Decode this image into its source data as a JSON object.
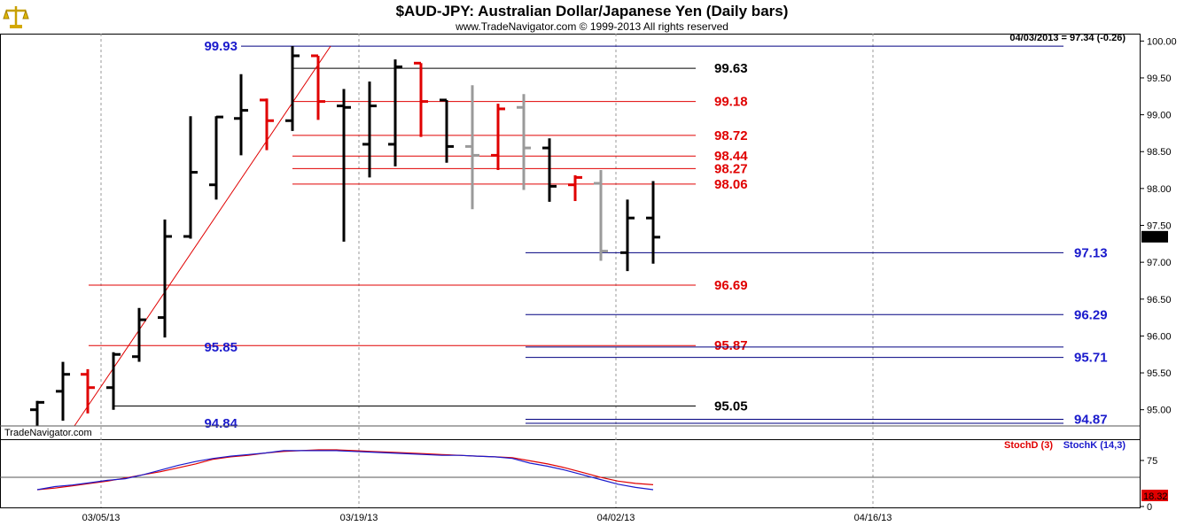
{
  "header": {
    "title": "$AUD-JPY:  Australian Dollar/Japanese Yen  (Daily bars)",
    "subtitle": "www.TradeNavigator.com © 1999-2013 All rights reserved",
    "last_quote": "04/03/2013 = 97.34 (-0.26)",
    "watermark": "TradeNavigator.com",
    "logo_icon": "scales-icon"
  },
  "colors": {
    "black": "#000000",
    "red": "#e00000",
    "gray": "#9a9a9a",
    "blue": "#1a1acc",
    "navy": "#000080",
    "stoch_d": "#e00000",
    "stoch_k": "#1a1acc",
    "price_tag_bg": "#000000",
    "stoch_tag_bg": "#e00000"
  },
  "chart_data": [
    {
      "type": "ohlc",
      "ylim": [
        94.6,
        100.1
      ],
      "y_ticks": [
        "100.00",
        "99.50",
        "99.00",
        "98.50",
        "98.00",
        "97.50",
        "97.00",
        "96.50",
        "96.00",
        "95.50",
        "95.00"
      ],
      "x_ticks": [
        "03/05/13",
        "03/19/13",
        "04/02/13",
        "04/16/13"
      ],
      "last_price": "97.34",
      "bars": [
        {
          "o": 95.0,
          "h": 95.12,
          "l": 94.78,
          "c": 95.1,
          "color": "black"
        },
        {
          "o": 95.25,
          "h": 95.65,
          "l": 94.85,
          "c": 95.48,
          "color": "black"
        },
        {
          "o": 95.48,
          "h": 95.55,
          "l": 94.95,
          "c": 95.3,
          "color": "red"
        },
        {
          "o": 95.3,
          "h": 95.78,
          "l": 95.0,
          "c": 95.75,
          "color": "black"
        },
        {
          "o": 95.72,
          "h": 96.38,
          "l": 95.65,
          "c": 96.22,
          "color": "black"
        },
        {
          "o": 96.25,
          "h": 97.58,
          "l": 95.98,
          "c": 97.35,
          "color": "black"
        },
        {
          "o": 97.35,
          "h": 98.98,
          "l": 97.32,
          "c": 98.22,
          "color": "black"
        },
        {
          "o": 98.05,
          "h": 98.98,
          "l": 97.85,
          "c": 98.97,
          "color": "black"
        },
        {
          "o": 98.95,
          "h": 99.55,
          "l": 98.45,
          "c": 99.06,
          "color": "black"
        },
        {
          "o": 99.2,
          "h": 99.22,
          "l": 98.52,
          "c": 98.92,
          "color": "red"
        },
        {
          "o": 98.92,
          "h": 99.93,
          "l": 98.78,
          "c": 99.8,
          "color": "black"
        },
        {
          "o": 99.8,
          "h": 99.8,
          "l": 98.93,
          "c": 99.18,
          "color": "red"
        },
        {
          "o": 99.12,
          "h": 99.35,
          "l": 97.28,
          "c": 99.1,
          "color": "black"
        },
        {
          "o": 98.6,
          "h": 99.45,
          "l": 98.15,
          "c": 99.12,
          "color": "black"
        },
        {
          "o": 98.6,
          "h": 99.75,
          "l": 98.3,
          "c": 99.65,
          "color": "black"
        },
        {
          "o": 99.7,
          "h": 99.7,
          "l": 98.7,
          "c": 99.18,
          "color": "red"
        },
        {
          "o": 99.2,
          "h": 99.2,
          "l": 98.35,
          "c": 98.57,
          "color": "black"
        },
        {
          "o": 98.57,
          "h": 99.4,
          "l": 97.72,
          "c": 98.45,
          "color": "gray"
        },
        {
          "o": 98.45,
          "h": 99.15,
          "l": 98.25,
          "c": 99.08,
          "color": "red"
        },
        {
          "o": 99.1,
          "h": 99.28,
          "l": 97.98,
          "c": 98.55,
          "color": "gray"
        },
        {
          "o": 98.55,
          "h": 98.68,
          "l": 97.82,
          "c": 98.03,
          "color": "black"
        },
        {
          "o": 98.05,
          "h": 98.18,
          "l": 97.83,
          "c": 98.15,
          "color": "red"
        },
        {
          "o": 98.07,
          "h": 98.25,
          "l": 97.02,
          "c": 97.15,
          "color": "gray"
        },
        {
          "o": 97.13,
          "h": 97.85,
          "l": 96.88,
          "c": 97.6,
          "color": "black"
        },
        {
          "o": 97.6,
          "h": 98.1,
          "l": 96.98,
          "c": 97.34,
          "color": "black"
        }
      ],
      "levels": [
        {
          "value": 99.93,
          "label": "99.93",
          "color": "blue",
          "label_side": "left"
        },
        {
          "value": 99.63,
          "label": "99.63",
          "color": "black",
          "label_side": "right"
        },
        {
          "value": 99.18,
          "label": "99.18",
          "color": "red",
          "label_side": "right"
        },
        {
          "value": 98.72,
          "label": "98.72",
          "color": "red",
          "label_side": "right"
        },
        {
          "value": 98.44,
          "label": "98.44",
          "color": "red",
          "label_side": "right"
        },
        {
          "value": 98.27,
          "label": "98.27",
          "color": "red",
          "label_side": "right"
        },
        {
          "value": 98.06,
          "label": "98.06",
          "color": "red",
          "label_side": "right"
        },
        {
          "value": 97.13,
          "label": "97.13",
          "color": "blue",
          "label_side": "far"
        },
        {
          "value": 96.69,
          "label": "96.69",
          "color": "red",
          "label_side": "right"
        },
        {
          "value": 96.29,
          "label": "96.29",
          "color": "blue",
          "label_side": "far"
        },
        {
          "value": 95.87,
          "label": "95.87",
          "color": "red",
          "label_side": "right"
        },
        {
          "value": 95.85,
          "label": "95.85",
          "color": "blue",
          "label_side": "left"
        },
        {
          "value": 95.71,
          "label": "95.71",
          "color": "blue",
          "label_side": "far"
        },
        {
          "value": 95.05,
          "label": "95.05",
          "color": "black",
          "label_side": "right"
        },
        {
          "value": 94.87,
          "label": "94.87",
          "color": "blue",
          "label_side": "far"
        },
        {
          "value": 94.84,
          "label": "94.84",
          "color": "blue",
          "label_side": "left"
        }
      ],
      "trendline": {
        "from_bar": 2,
        "from_value": 94.78,
        "to_bar": 10,
        "to_value": 99.93,
        "color": "red"
      }
    },
    {
      "type": "line",
      "ylim": [
        0,
        100
      ],
      "y_ticks": [
        "75",
        "0"
      ],
      "reference_lines": [
        75,
        25
      ],
      "last_value": "18.32",
      "series": [
        {
          "name": "StochD (3)",
          "color": "red",
          "values": [
            12,
            14,
            17,
            20,
            23,
            27,
            31,
            35,
            40,
            45,
            51,
            54,
            56,
            59,
            61,
            62,
            63,
            63,
            62,
            61,
            60,
            59,
            58,
            57,
            56,
            55,
            54,
            53,
            49,
            45,
            40,
            34,
            28,
            23,
            20,
            18.32
          ]
        },
        {
          "name": "StochK (14,3)",
          "color": "blue",
          "values": [
            12,
            16,
            18,
            21,
            24,
            26,
            31,
            37,
            43,
            48,
            52,
            55,
            57,
            59,
            62,
            62,
            62,
            62,
            61,
            60,
            59,
            58,
            57,
            56,
            56,
            55,
            54,
            52,
            46,
            42,
            37,
            31,
            25,
            19,
            15,
            12
          ]
        }
      ]
    }
  ]
}
